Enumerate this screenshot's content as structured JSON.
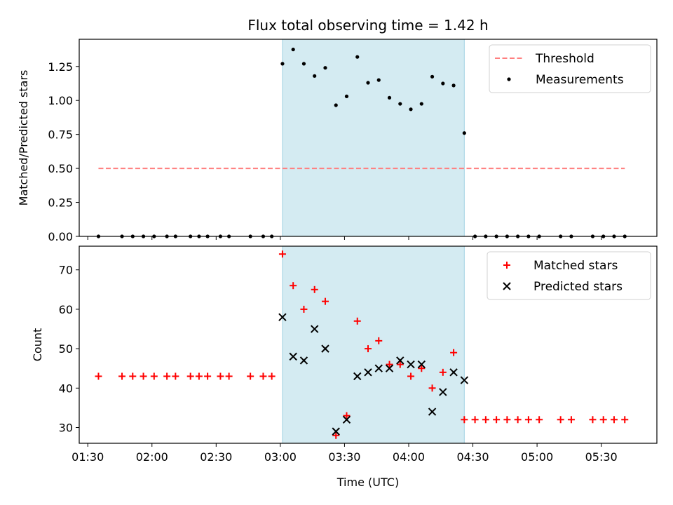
{
  "chart_data": [
    {
      "type": "scatter",
      "title": "Flux total observing time = 1.42 h",
      "xlabel": "",
      "ylabel": "Matched/Predicted stars",
      "xlim": [
        "01:26",
        "05:56"
      ],
      "ylim": [
        0,
        1.45
      ],
      "yticks": [
        "0.00",
        "0.25",
        "0.50",
        "0.75",
        "1.00",
        "1.25"
      ],
      "shaded_interval": [
        "03:01",
        "04:26"
      ],
      "legend": [
        "Threshold",
        "Measurements"
      ],
      "legend_position": "top-right",
      "series": [
        {
          "name": "Threshold",
          "style": "dashed-line",
          "color": "#ff7f7f",
          "x": [
            "01:35",
            "05:41"
          ],
          "y": [
            0.5,
            0.5
          ]
        },
        {
          "name": "Measurements",
          "style": "dot",
          "color": "#000000",
          "x": [
            "01:35",
            "01:46",
            "01:51",
            "01:56",
            "02:01",
            "02:07",
            "02:11",
            "02:18",
            "02:22",
            "02:26",
            "02:32",
            "02:36",
            "02:46",
            "02:52",
            "02:56",
            "03:01",
            "03:06",
            "03:11",
            "03:16",
            "03:21",
            "03:26",
            "03:31",
            "03:36",
            "03:41",
            "03:46",
            "03:51",
            "03:56",
            "04:01",
            "04:06",
            "04:11",
            "04:16",
            "04:21",
            "04:26",
            "04:31",
            "04:36",
            "04:41",
            "04:46",
            "04:51",
            "04:56",
            "05:01",
            "05:11",
            "05:16",
            "05:26",
            "05:31",
            "05:36",
            "05:41"
          ],
          "y": [
            0,
            0,
            0,
            0,
            0,
            0,
            0,
            0,
            0,
            0,
            0,
            0,
            0,
            0,
            0,
            1.27,
            1.375,
            1.27,
            1.18,
            1.24,
            0.965,
            1.03,
            1.32,
            1.13,
            1.15,
            1.02,
            0.975,
            0.935,
            0.975,
            1.175,
            1.125,
            1.11,
            0.76,
            0,
            0,
            0,
            0,
            0,
            0,
            0,
            0,
            0,
            0,
            0,
            0,
            0
          ]
        }
      ]
    },
    {
      "type": "scatter",
      "title": "",
      "xlabel": "Time (UTC)",
      "ylabel": "Count",
      "xlim": [
        "01:26",
        "05:56"
      ],
      "ylim": [
        26,
        76
      ],
      "xticks": [
        "01:30",
        "02:00",
        "02:30",
        "03:00",
        "03:30",
        "04:00",
        "04:30",
        "05:00",
        "05:30"
      ],
      "yticks": [
        "30",
        "40",
        "50",
        "60",
        "70"
      ],
      "shaded_interval": [
        "03:01",
        "04:26"
      ],
      "legend": [
        "Matched stars",
        "Predicted stars"
      ],
      "legend_position": "top-right",
      "series": [
        {
          "name": "Matched stars",
          "marker": "+",
          "color": "#ff0000",
          "x": [
            "01:35",
            "01:46",
            "01:51",
            "01:56",
            "02:01",
            "02:07",
            "02:11",
            "02:18",
            "02:22",
            "02:26",
            "02:32",
            "02:36",
            "02:46",
            "02:52",
            "02:56",
            "03:01",
            "03:06",
            "03:11",
            "03:16",
            "03:21",
            "03:26",
            "03:31",
            "03:36",
            "03:41",
            "03:46",
            "03:51",
            "03:56",
            "04:01",
            "04:06",
            "04:11",
            "04:16",
            "04:21",
            "04:26",
            "04:31",
            "04:36",
            "04:41",
            "04:46",
            "04:51",
            "04:56",
            "05:01",
            "05:11",
            "05:16",
            "05:26",
            "05:31",
            "05:36",
            "05:41"
          ],
          "y": [
            43,
            43,
            43,
            43,
            43,
            43,
            43,
            43,
            43,
            43,
            43,
            43,
            43,
            43,
            43,
            74,
            66,
            60,
            65,
            62,
            28,
            33,
            57,
            50,
            52,
            46,
            46,
            43,
            45,
            40,
            44,
            49,
            32,
            32,
            32,
            32,
            32,
            32,
            32,
            32,
            32,
            32,
            32,
            32,
            32,
            32
          ]
        },
        {
          "name": "Predicted stars",
          "marker": "x",
          "color": "#000000",
          "x": [
            "03:01",
            "03:06",
            "03:11",
            "03:16",
            "03:21",
            "03:26",
            "03:31",
            "03:36",
            "03:41",
            "03:46",
            "03:51",
            "03:56",
            "04:01",
            "04:06",
            "04:11",
            "04:16",
            "04:21",
            "04:26"
          ],
          "y": [
            58,
            48,
            47,
            55,
            50,
            29,
            32,
            43,
            44,
            45,
            45,
            47,
            46,
            46,
            34,
            39,
            44,
            42
          ]
        }
      ]
    }
  ]
}
